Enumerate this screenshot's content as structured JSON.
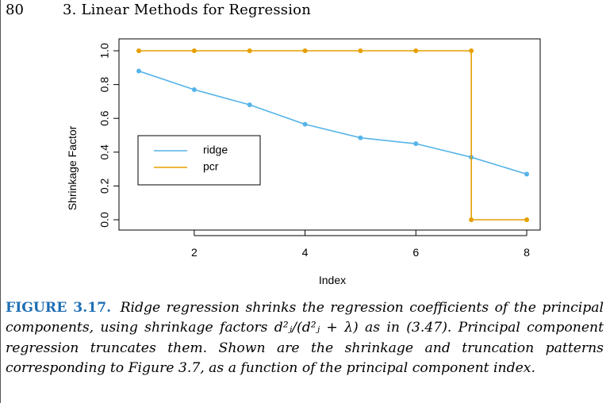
{
  "header": {
    "page_number": "80",
    "running_head": "3. Linear Methods for Regression"
  },
  "colors": {
    "ridge": "#56B4E9",
    "pcr": "#E69F00",
    "caption_label": "#1f6fb5"
  },
  "chart_data": {
    "type": "line",
    "xlabel": "Index",
    "ylabel": "Shrinkage Factor",
    "xlim": [
      1,
      8
    ],
    "ylim": [
      0,
      1
    ],
    "xticks": [
      "2",
      "4",
      "6",
      "8"
    ],
    "yticks": [
      "0.0",
      "0.2",
      "0.4",
      "0.6",
      "0.8",
      "1.0"
    ],
    "legend_position": "left-middle",
    "x": [
      1,
      2,
      3,
      4,
      5,
      6,
      7,
      8
    ],
    "series": [
      {
        "name": "ridge",
        "values": [
          0.88,
          0.77,
          0.68,
          0.565,
          0.485,
          0.45,
          0.37,
          0.27
        ]
      },
      {
        "name": "pcr",
        "values": [
          1,
          1,
          1,
          1,
          1,
          1,
          1,
          0,
          0
        ],
        "x": [
          1,
          2,
          3,
          4,
          5,
          6,
          7,
          7,
          8
        ],
        "step": true
      }
    ]
  },
  "caption": {
    "label": "FIGURE 3.17.",
    "text_before": "Ridge regression shrinks the regression coefficients of the principal components, using shrinkage factors",
    "formula": "d²ⱼ/(d²ⱼ + λ)",
    "text_after": "as in (3.47). Principal component regression truncates them. Shown are the shrinkage and truncation patterns corresponding to Figure 3.7, as a function of the principal component index."
  }
}
